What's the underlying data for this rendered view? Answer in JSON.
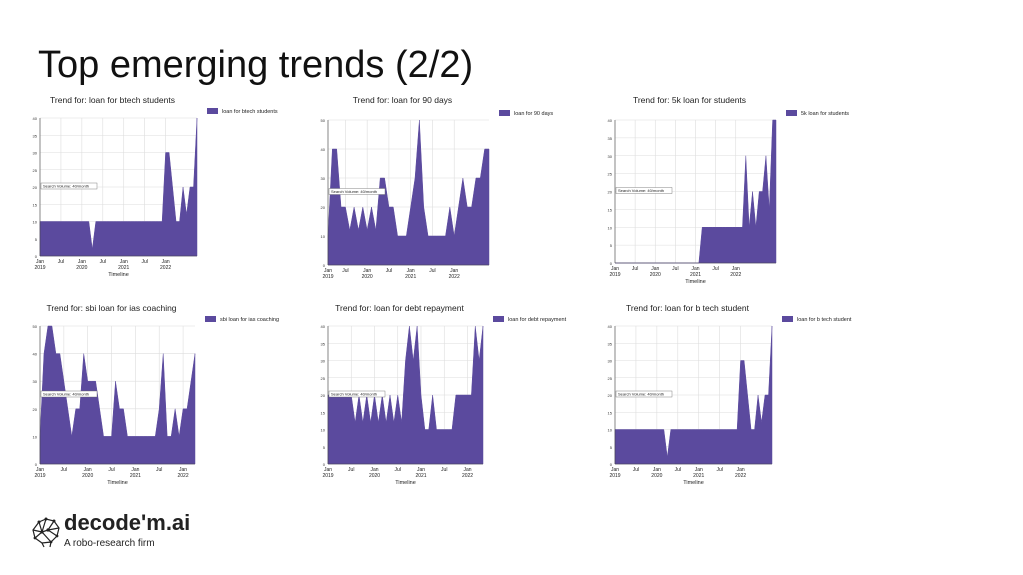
{
  "slide": {
    "title": "Top emerging trends (2/2)"
  },
  "brand": {
    "name": "decode'm.ai",
    "tagline": "A robo-research firm"
  },
  "colors": {
    "fill": "#5b4a9e",
    "grid": "#dddddd",
    "axis": "#444444",
    "label_box": "#ffffff"
  },
  "chart_data": [
    {
      "type": "area",
      "title": "Trend for: loan for btech students",
      "series": [
        {
          "name": "loan for btech students",
          "values": [
            10,
            10,
            10,
            10,
            10,
            10,
            10,
            10,
            10,
            10,
            10,
            10,
            10,
            10,
            10,
            2,
            10,
            10,
            10,
            10,
            10,
            10,
            10,
            10,
            10,
            10,
            10,
            10,
            10,
            10,
            10,
            10,
            10,
            10,
            10,
            10,
            30,
            30,
            20,
            10,
            10,
            20,
            12,
            20,
            20,
            40
          ]
        }
      ],
      "xlabel": "Timeline",
      "ylabel": "",
      "ylim": [
        0,
        40
      ],
      "yticks": [
        0,
        5,
        10,
        15,
        20,
        25,
        30,
        35,
        40
      ],
      "xticks": [
        {
          "i": 0,
          "label": "Jan",
          "sub": "2019"
        },
        {
          "i": 6,
          "label": "Jul",
          "sub": ""
        },
        {
          "i": 12,
          "label": "Jan",
          "sub": "2020"
        },
        {
          "i": 18,
          "label": "Jul",
          "sub": ""
        },
        {
          "i": 24,
          "label": "Jan",
          "sub": "2021"
        },
        {
          "i": 30,
          "label": "Jul",
          "sub": ""
        },
        {
          "i": 36,
          "label": "Jan",
          "sub": "2022"
        }
      ],
      "annotation": "Search Volume: 40/month",
      "legend_position": "top-right",
      "grid": true
    },
    {
      "type": "area",
      "title": "Trend for: loan for 90 days",
      "series": [
        {
          "name": "loan for 90 days",
          "values": [
            10,
            40,
            40,
            20,
            20,
            12,
            20,
            12,
            20,
            12,
            20,
            12,
            30,
            30,
            20,
            20,
            10,
            10,
            10,
            20,
            30,
            50,
            20,
            10,
            10,
            10,
            10,
            10,
            20,
            10,
            20,
            30,
            20,
            20,
            30,
            30,
            40,
            40
          ]
        }
      ],
      "xlabel": "",
      "ylabel": "",
      "ylim": [
        0,
        50
      ],
      "yticks": [
        0,
        10,
        20,
        30,
        40,
        50
      ],
      "xticks": [
        {
          "i": 0,
          "label": "Jan",
          "sub": "2019"
        },
        {
          "i": 4,
          "label": "Jul",
          "sub": ""
        },
        {
          "i": 9,
          "label": "Jan",
          "sub": "2020"
        },
        {
          "i": 14,
          "label": "Jul",
          "sub": ""
        },
        {
          "i": 19,
          "label": "Jan",
          "sub": "2021"
        },
        {
          "i": 24,
          "label": "Jul",
          "sub": ""
        },
        {
          "i": 29,
          "label": "Jan",
          "sub": "2022"
        }
      ],
      "annotation": "Search Volume: 40/month",
      "legend_position": "top-right",
      "grid": true
    },
    {
      "type": "area",
      "title": "Trend for: 5k loan for students",
      "series": [
        {
          "name": "5k loan for students",
          "values": [
            0,
            0,
            0,
            0,
            0,
            0,
            0,
            0,
            0,
            0,
            0,
            0,
            0,
            0,
            0,
            0,
            0,
            0,
            0,
            0,
            0,
            0,
            0,
            0,
            0,
            0,
            10,
            10,
            10,
            10,
            10,
            10,
            10,
            10,
            10,
            10,
            10,
            10,
            10,
            30,
            10,
            20,
            10,
            20,
            20,
            30,
            15,
            40,
            40
          ]
        }
      ],
      "xlabel": "Timeline",
      "ylabel": "",
      "ylim": [
        0,
        40
      ],
      "yticks": [
        0,
        5,
        10,
        15,
        20,
        25,
        30,
        35,
        40
      ],
      "xticks": [
        {
          "i": 0,
          "label": "Jan",
          "sub": "2019"
        },
        {
          "i": 6,
          "label": "Jul",
          "sub": ""
        },
        {
          "i": 12,
          "label": "Jan",
          "sub": "2020"
        },
        {
          "i": 18,
          "label": "Jul",
          "sub": ""
        },
        {
          "i": 24,
          "label": "Jan",
          "sub": "2021"
        },
        {
          "i": 30,
          "label": "Jul",
          "sub": ""
        },
        {
          "i": 36,
          "label": "Jan",
          "sub": "2022"
        }
      ],
      "annotation": "Search Volume: 40/month",
      "legend_position": "top-right",
      "grid": true
    },
    {
      "type": "area",
      "title": "Trend for: sbi loan for ias coaching",
      "series": [
        {
          "name": "sbi loan for ias coaching",
          "values": [
            10,
            40,
            50,
            50,
            40,
            40,
            30,
            20,
            10,
            20,
            20,
            40,
            30,
            30,
            30,
            20,
            10,
            10,
            10,
            30,
            20,
            20,
            10,
            10,
            10,
            10,
            10,
            10,
            10,
            10,
            20,
            40,
            10,
            10,
            20,
            10,
            20,
            20,
            30,
            40
          ]
        }
      ],
      "xlabel": "Timeline",
      "ylabel": "",
      "ylim": [
        0,
        50
      ],
      "yticks": [
        0,
        10,
        20,
        30,
        40,
        50
      ],
      "xticks": [
        {
          "i": 0,
          "label": "Jan",
          "sub": "2019"
        },
        {
          "i": 6,
          "label": "Jul",
          "sub": ""
        },
        {
          "i": 12,
          "label": "Jan",
          "sub": "2020"
        },
        {
          "i": 18,
          "label": "Jul",
          "sub": ""
        },
        {
          "i": 24,
          "label": "Jan",
          "sub": "2021"
        },
        {
          "i": 30,
          "label": "Jul",
          "sub": ""
        },
        {
          "i": 36,
          "label": "Jan",
          "sub": "2022"
        }
      ],
      "annotation": "Search Volume: 40/month",
      "legend_position": "top-right",
      "grid": true
    },
    {
      "type": "area",
      "title": "Trend for: loan for debt repayment",
      "series": [
        {
          "name": "loan for debt repayment",
          "values": [
            20,
            20,
            20,
            20,
            20,
            20,
            20,
            12,
            20,
            12,
            20,
            12,
            20,
            12,
            20,
            12,
            20,
            12,
            20,
            12,
            30,
            40,
            30,
            40,
            20,
            10,
            10,
            20,
            10,
            10,
            10,
            10,
            10,
            20,
            20,
            20,
            20,
            20,
            40,
            30,
            40
          ]
        }
      ],
      "xlabel": "Timeline",
      "ylabel": "",
      "ylim": [
        0,
        40
      ],
      "yticks": [
        0,
        5,
        10,
        15,
        20,
        25,
        30,
        35,
        40
      ],
      "xticks": [
        {
          "i": 0,
          "label": "Jan",
          "sub": "2019"
        },
        {
          "i": 6,
          "label": "Jul",
          "sub": ""
        },
        {
          "i": 12,
          "label": "Jan",
          "sub": "2020"
        },
        {
          "i": 18,
          "label": "Jul",
          "sub": ""
        },
        {
          "i": 24,
          "label": "Jan",
          "sub": "2021"
        },
        {
          "i": 30,
          "label": "Jul",
          "sub": ""
        },
        {
          "i": 36,
          "label": "Jan",
          "sub": "2022"
        }
      ],
      "annotation": "Search Volume: 40/month",
      "legend_position": "top-right",
      "grid": true
    },
    {
      "type": "area",
      "title": "Trend for: loan for b tech student",
      "series": [
        {
          "name": "loan for b tech student",
          "values": [
            10,
            10,
            10,
            10,
            10,
            10,
            10,
            10,
            10,
            10,
            10,
            10,
            10,
            10,
            10,
            2,
            10,
            10,
            10,
            10,
            10,
            10,
            10,
            10,
            10,
            10,
            10,
            10,
            10,
            10,
            10,
            10,
            10,
            10,
            10,
            10,
            30,
            30,
            20,
            10,
            10,
            20,
            12,
            20,
            20,
            40
          ]
        }
      ],
      "xlabel": "Timeline",
      "ylabel": "",
      "ylim": [
        0,
        40
      ],
      "yticks": [
        0,
        5,
        10,
        15,
        20,
        25,
        30,
        35,
        40
      ],
      "xticks": [
        {
          "i": 0,
          "label": "Jan",
          "sub": "2019"
        },
        {
          "i": 6,
          "label": "Jul",
          "sub": ""
        },
        {
          "i": 12,
          "label": "Jan",
          "sub": "2020"
        },
        {
          "i": 18,
          "label": "Jul",
          "sub": ""
        },
        {
          "i": 24,
          "label": "Jan",
          "sub": "2021"
        },
        {
          "i": 30,
          "label": "Jul",
          "sub": ""
        },
        {
          "i": 36,
          "label": "Jan",
          "sub": "2022"
        }
      ],
      "annotation": "Search Volume: 40/month",
      "legend_position": "top-right",
      "grid": true
    }
  ]
}
